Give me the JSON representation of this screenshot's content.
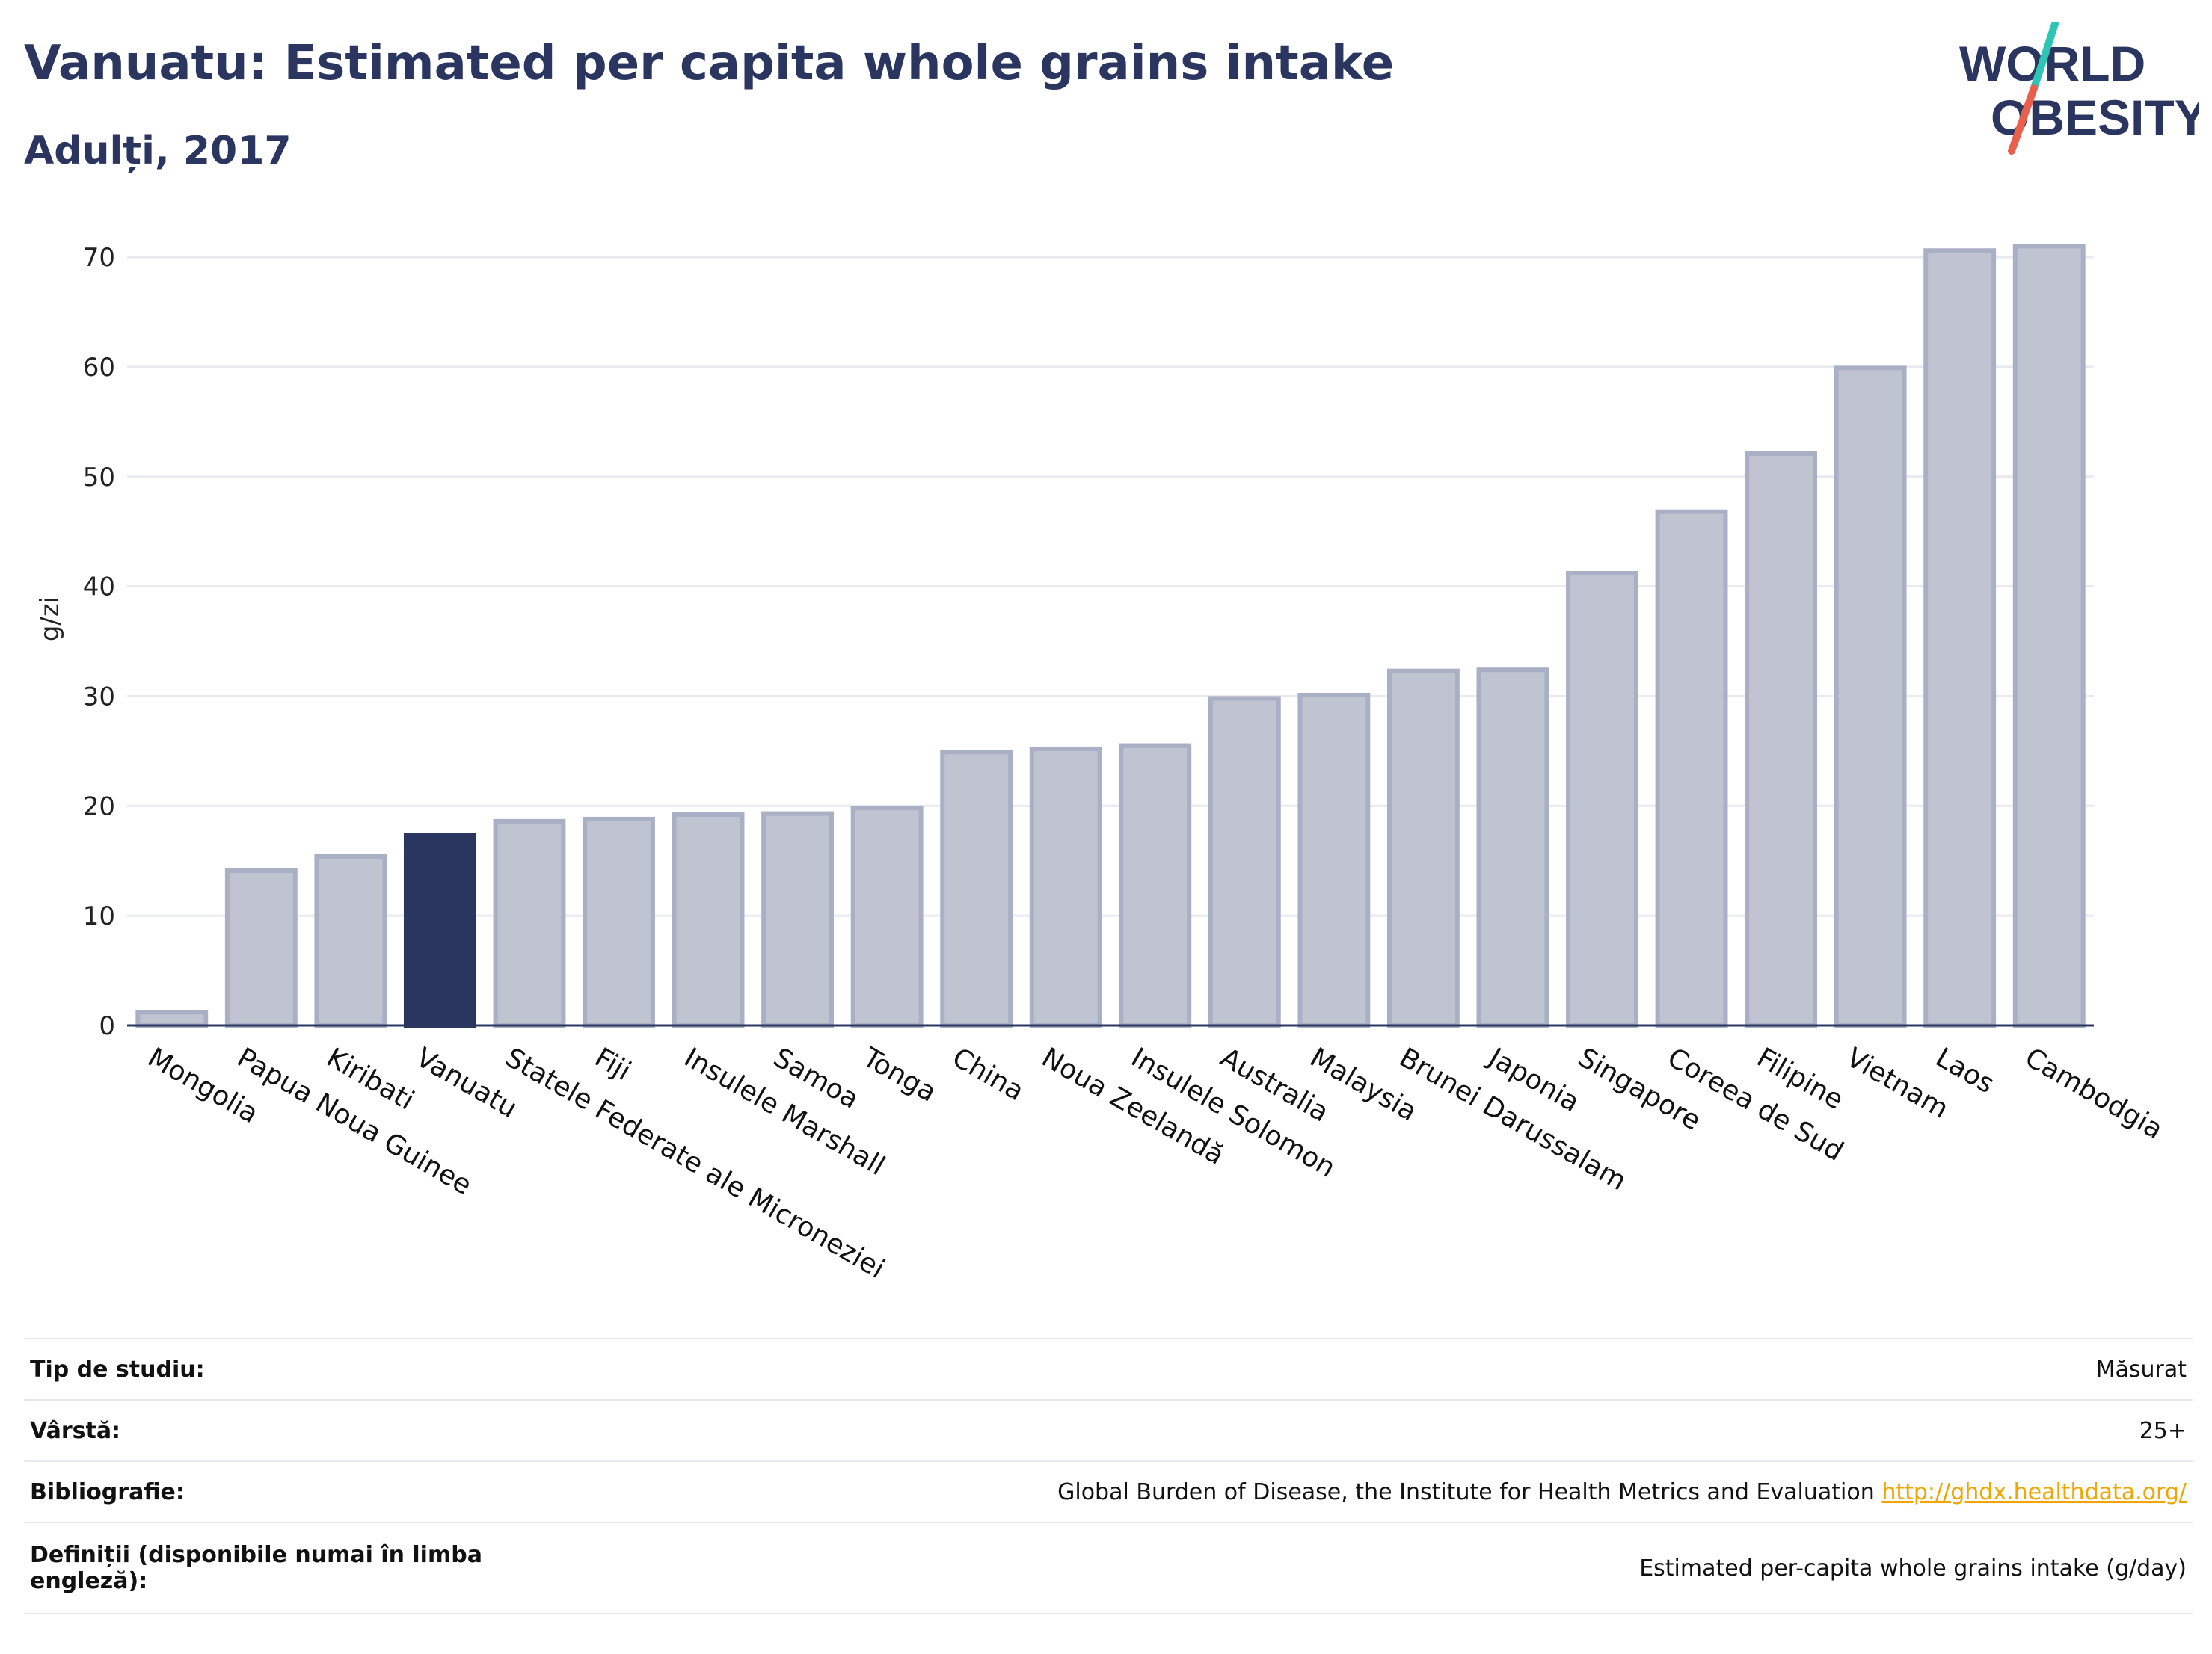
{
  "header": {
    "title": "Vanuatu: Estimated per capita whole grains intake",
    "subtitle": "Adulți, 2017"
  },
  "logo": {
    "line1": "WORLD",
    "line2": "OBESITY",
    "accent_colors": [
      "#2ec4b6",
      "#e8604c"
    ]
  },
  "chart_data": {
    "type": "bar",
    "title": "Vanuatu: Estimated per capita whole grains intake",
    "subtitle": "Adulți, 2017",
    "xlabel": "",
    "ylabel": "g/zi",
    "ylim": [
      0,
      73
    ],
    "yticks": [
      0,
      10,
      20,
      30,
      40,
      50,
      60,
      70
    ],
    "grid": true,
    "categories": [
      "Mongolia",
      "Papua Noua Guinee",
      "Kiribati",
      "Vanuatu",
      "Statele Federate ale Microneziei",
      "Fiji",
      "Insulele Marshall",
      "Samoa",
      "Tonga",
      "China",
      "Noua Zeelandă",
      "Insulele Solomon",
      "Australia",
      "Malaysia",
      "Brunei Darussalam",
      "Japonia",
      "Singapore",
      "Coreea de Sud",
      "Filipine",
      "Vietnam",
      "Laos",
      "Cambodgia"
    ],
    "values": [
      1.2,
      14.1,
      15.4,
      17.3,
      18.6,
      18.8,
      19.2,
      19.3,
      19.8,
      24.9,
      25.2,
      25.5,
      29.8,
      30.1,
      32.3,
      32.4,
      41.2,
      46.8,
      52.1,
      59.9,
      70.6,
      71.0
    ],
    "highlight": "Vanuatu",
    "colors": {
      "highlight": "#2a3560",
      "bar_fill": "#c0c4d1",
      "bar_stroke": "#a9afc4"
    }
  },
  "info": {
    "rows": [
      {
        "key": "Tip de studiu:",
        "value": "Măsurat"
      },
      {
        "key": "Vârstă:",
        "value": "25+"
      },
      {
        "key": "Bibliografie:",
        "value": "Global Burden of Disease, the Institute for Health Metrics and Evaluation",
        "link": "http://ghdx.healthdata.org/"
      },
      {
        "key": "Definiții (disponibile numai în limba engleză):",
        "value": "Estimated per-capita whole grains intake (g/day)"
      }
    ]
  }
}
